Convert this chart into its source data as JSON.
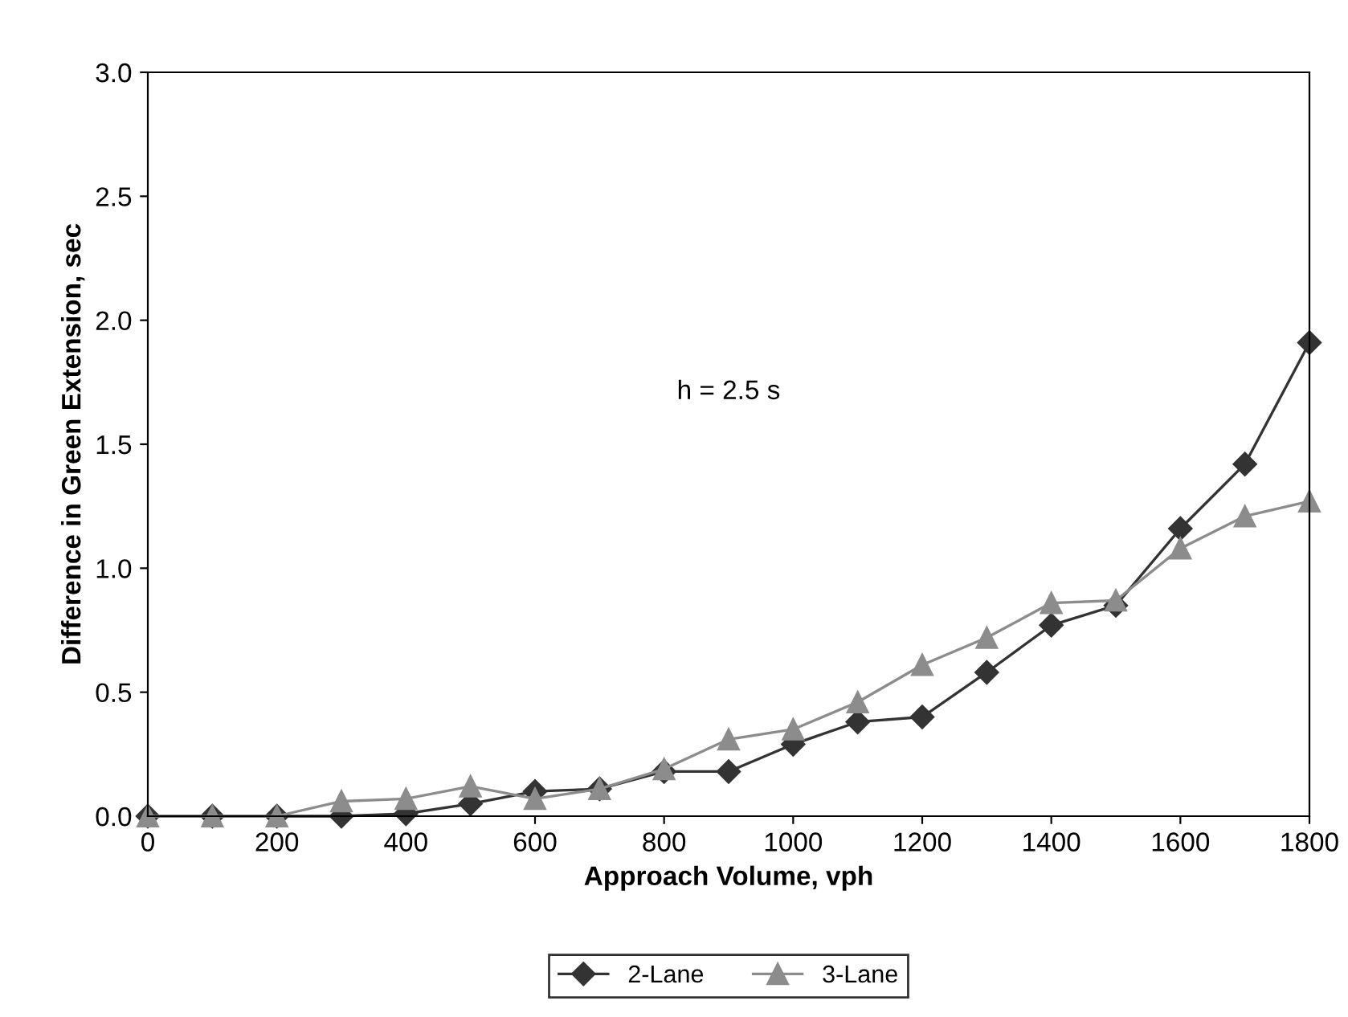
{
  "chart_data": {
    "type": "line",
    "xlabel": "Approach Volume, vph",
    "ylabel": "Difference in Green Extension, sec",
    "x": [
      0,
      100,
      200,
      300,
      400,
      500,
      600,
      700,
      800,
      900,
      1000,
      1100,
      1200,
      1300,
      1400,
      1500,
      1600,
      1700,
      1800
    ],
    "series": [
      {
        "name": "2-Lane",
        "color": "#333333",
        "marker": "diamond",
        "values": [
          0,
          0,
          0,
          0.0,
          0.01,
          0.05,
          0.1,
          0.11,
          0.18,
          0.18,
          0.29,
          0.38,
          0.4,
          0.58,
          0.77,
          0.85,
          1.16,
          1.42,
          1.91
        ]
      },
      {
        "name": "3-Lane",
        "color": "#8c8c8c",
        "marker": "triangle",
        "values": [
          0,
          0,
          0,
          0.06,
          0.07,
          0.12,
          0.07,
          0.11,
          0.19,
          0.31,
          0.35,
          0.46,
          0.61,
          0.72,
          0.86,
          0.87,
          1.08,
          1.21,
          1.27
        ]
      }
    ],
    "xlim": [
      0,
      1800
    ],
    "xticks": [
      0,
      200,
      400,
      600,
      800,
      1000,
      1200,
      1400,
      1600,
      1800
    ],
    "ylim": [
      0,
      3.0
    ],
    "yticks": [
      {
        "value": 0,
        "label": "0.0"
      },
      {
        "value": 0.5,
        "label": "0.5"
      },
      {
        "value": 1.0,
        "label": "1.0"
      },
      {
        "value": 1.5,
        "label": "1.5"
      },
      {
        "value": 2.0,
        "label": "2.0"
      },
      {
        "value": 2.5,
        "label": "2.5"
      },
      {
        "value": 3.0,
        "label": "3.0"
      }
    ],
    "annotations": [
      "h = 2.5 s"
    ],
    "grid": false,
    "legend": "bottom",
    "line_style": "solid"
  }
}
